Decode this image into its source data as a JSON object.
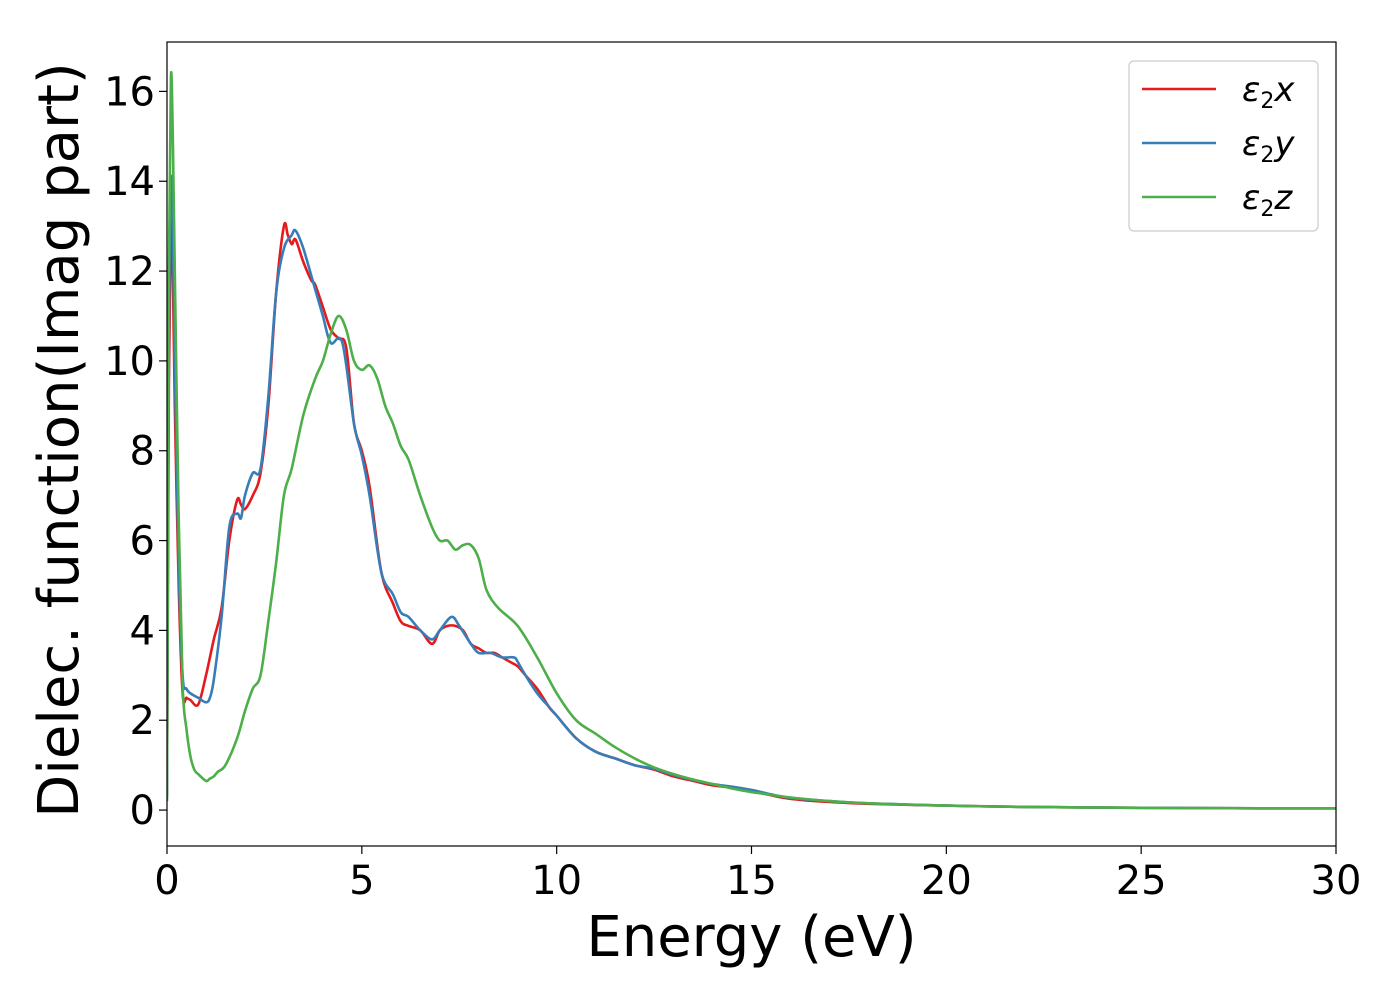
{
  "chart_data": {
    "type": "line",
    "xlabel": "Energy (eV)",
    "ylabel": "Dielec. function(Imag part)",
    "xlim": [
      0,
      30
    ],
    "ylim": [
      -0.8,
      17.1
    ],
    "xticks": [
      0,
      5,
      10,
      15,
      20,
      25,
      30
    ],
    "yticks": [
      0,
      2,
      4,
      6,
      8,
      10,
      12,
      14,
      16
    ],
    "grid": false,
    "legend_position": "top-right",
    "series": [
      {
        "name": "ε2x",
        "legend": {
          "sym": "ε",
          "sub": "2",
          "axis": "x"
        },
        "color": "#e41a1c",
        "x": [
          0,
          0.05,
          0.1,
          0.15,
          0.2,
          0.3,
          0.4,
          0.5,
          0.6,
          0.8,
          1.0,
          1.2,
          1.4,
          1.6,
          1.8,
          1.9,
          2.0,
          2.2,
          2.4,
          2.6,
          2.8,
          3.0,
          3.1,
          3.2,
          3.3,
          3.5,
          3.7,
          3.8,
          4.0,
          4.2,
          4.4,
          4.6,
          4.8,
          5.0,
          5.2,
          5.5,
          5.8,
          6.0,
          6.2,
          6.5,
          6.8,
          7.0,
          7.2,
          7.4,
          7.6,
          7.8,
          8.0,
          8.2,
          8.4,
          8.6,
          8.8,
          9.0,
          9.2,
          9.5,
          9.8,
          10.0,
          10.5,
          11.0,
          11.5,
          12.0,
          12.5,
          13.0,
          13.5,
          14.0,
          14.5,
          15.0,
          15.5,
          16.0,
          17.0,
          18.0,
          20.0,
          22.0,
          25.0,
          28.0,
          30.0
        ],
        "values": [
          0.3,
          9.5,
          13.2,
          12.0,
          9.0,
          5.0,
          2.6,
          2.5,
          2.45,
          2.35,
          3.0,
          3.8,
          4.5,
          6.0,
          6.9,
          6.8,
          6.7,
          7.0,
          7.5,
          9.0,
          11.5,
          13.0,
          12.8,
          12.6,
          12.7,
          12.2,
          11.8,
          11.7,
          11.2,
          10.7,
          10.5,
          10.3,
          8.6,
          8.0,
          7.2,
          5.3,
          4.6,
          4.2,
          4.1,
          4.0,
          3.7,
          4.0,
          4.1,
          4.1,
          4.0,
          3.7,
          3.6,
          3.5,
          3.5,
          3.4,
          3.3,
          3.2,
          3.0,
          2.7,
          2.3,
          2.1,
          1.6,
          1.3,
          1.15,
          1.0,
          0.9,
          0.75,
          0.65,
          0.55,
          0.5,
          0.42,
          0.33,
          0.25,
          0.18,
          0.14,
          0.1,
          0.07,
          0.05,
          0.04,
          0.04
        ]
      },
      {
        "name": "ε2y",
        "legend": {
          "sym": "ε",
          "sub": "2",
          "axis": "y"
        },
        "color": "#377eb8",
        "x": [
          0,
          0.05,
          0.1,
          0.15,
          0.2,
          0.3,
          0.4,
          0.5,
          0.6,
          0.8,
          1.0,
          1.1,
          1.2,
          1.4,
          1.6,
          1.8,
          1.9,
          2.0,
          2.2,
          2.4,
          2.6,
          2.8,
          3.0,
          3.2,
          3.3,
          3.5,
          3.8,
          4.0,
          4.2,
          4.5,
          4.8,
          5.0,
          5.2,
          5.5,
          5.8,
          6.0,
          6.2,
          6.5,
          6.8,
          7.0,
          7.3,
          7.5,
          7.8,
          8.0,
          8.3,
          8.6,
          8.9,
          9.0,
          9.2,
          9.5,
          9.8,
          10.0,
          10.5,
          11.0,
          11.5,
          12.0,
          12.5,
          13.0,
          13.5,
          14.0,
          14.5,
          15.0,
          15.5,
          16.0,
          17.0,
          18.0,
          20.0,
          22.0,
          25.0,
          28.0,
          30.0
        ],
        "values": [
          0.3,
          10.5,
          14.0,
          13.0,
          10.0,
          5.5,
          3.0,
          2.7,
          2.6,
          2.5,
          2.4,
          2.5,
          2.9,
          4.3,
          6.3,
          6.6,
          6.5,
          7.0,
          7.5,
          7.6,
          9.2,
          11.5,
          12.5,
          12.8,
          12.9,
          12.5,
          11.6,
          11.0,
          10.4,
          10.4,
          8.6,
          7.9,
          7.0,
          5.3,
          4.8,
          4.4,
          4.3,
          4.0,
          3.8,
          4.0,
          4.3,
          4.1,
          3.7,
          3.5,
          3.5,
          3.4,
          3.4,
          3.3,
          3.0,
          2.6,
          2.3,
          2.1,
          1.6,
          1.3,
          1.15,
          1.0,
          0.92,
          0.78,
          0.67,
          0.58,
          0.52,
          0.45,
          0.35,
          0.27,
          0.2,
          0.15,
          0.1,
          0.07,
          0.05,
          0.04,
          0.04
        ]
      },
      {
        "name": "ε2z",
        "legend": {
          "sym": "ε",
          "sub": "2",
          "axis": "z"
        },
        "color": "#4daf4a",
        "x": [
          0,
          0.05,
          0.1,
          0.15,
          0.2,
          0.3,
          0.4,
          0.5,
          0.6,
          0.7,
          0.8,
          1.0,
          1.1,
          1.2,
          1.3,
          1.5,
          1.8,
          2.0,
          2.2,
          2.4,
          2.6,
          2.8,
          3.0,
          3.2,
          3.5,
          3.8,
          4.0,
          4.2,
          4.4,
          4.6,
          4.8,
          5.0,
          5.2,
          5.4,
          5.6,
          5.8,
          6.0,
          6.2,
          6.5,
          6.8,
          7.0,
          7.2,
          7.4,
          7.6,
          7.8,
          8.0,
          8.2,
          8.5,
          9.0,
          9.5,
          10.0,
          10.5,
          11.0,
          11.5,
          12.0,
          12.5,
          13.0,
          13.5,
          14.0,
          14.5,
          15.0,
          15.5,
          16.0,
          17.0,
          18.0,
          20.0,
          22.0,
          25.0,
          28.0,
          30.0
        ],
        "values": [
          0.2,
          12.0,
          16.3,
          15.0,
          12.0,
          6.5,
          2.8,
          1.8,
          1.2,
          0.9,
          0.8,
          0.65,
          0.7,
          0.75,
          0.85,
          1.0,
          1.6,
          2.2,
          2.7,
          3.0,
          4.2,
          5.5,
          7.0,
          7.6,
          8.8,
          9.6,
          10.0,
          10.6,
          11.0,
          10.7,
          10.0,
          9.8,
          9.9,
          9.6,
          9.0,
          8.6,
          8.1,
          7.8,
          7.0,
          6.3,
          6.0,
          6.0,
          5.8,
          5.9,
          5.9,
          5.6,
          4.9,
          4.5,
          4.1,
          3.4,
          2.6,
          2.0,
          1.7,
          1.4,
          1.15,
          0.95,
          0.8,
          0.68,
          0.58,
          0.48,
          0.4,
          0.34,
          0.28,
          0.2,
          0.15,
          0.1,
          0.07,
          0.05,
          0.04,
          0.04
        ]
      }
    ]
  }
}
